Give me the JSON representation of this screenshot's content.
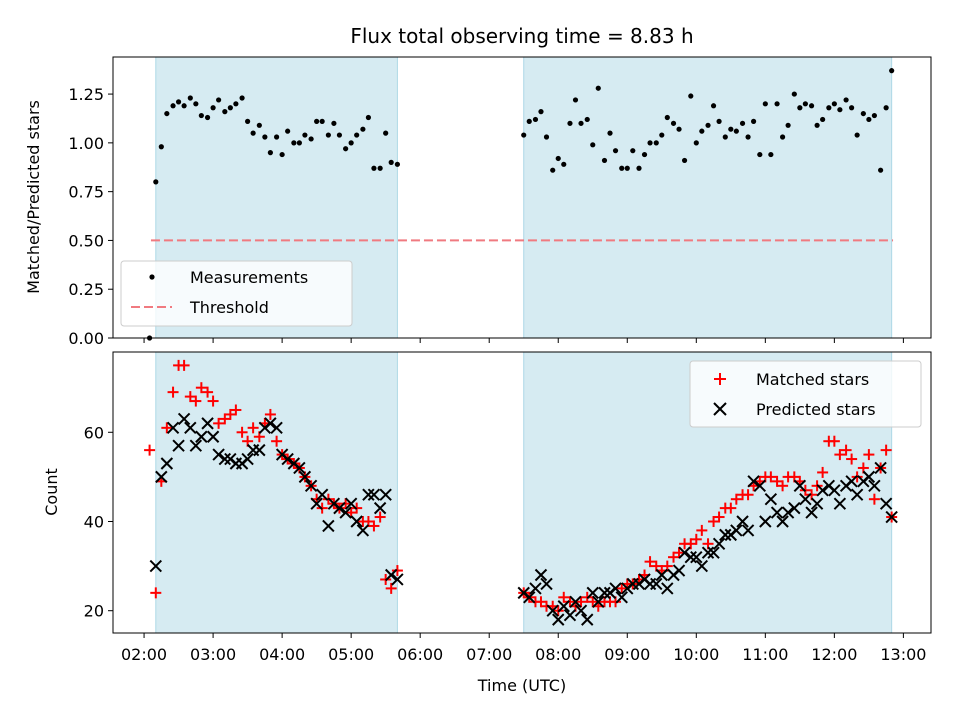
{
  "chart_data": [
    {
      "type": "scatter",
      "title": "Flux total observing time = 8.83 h",
      "xlabel": "",
      "ylabel": "Matched/Predicted stars",
      "ylim": [
        0,
        1.44
      ],
      "yticks": [
        0.0,
        0.25,
        0.5,
        0.75,
        1.0,
        1.25
      ],
      "yticklabels": [
        "0.00",
        "0.25",
        "0.50",
        "0.75",
        "1.00",
        "1.25"
      ],
      "threshold": 0.5,
      "threshold_span": [
        2.1,
        12.85
      ],
      "shaded_intervals": [
        [
          2.17,
          5.67
        ],
        [
          7.5,
          12.83
        ]
      ],
      "legend": {
        "position": "lower-left",
        "entries": [
          "Measurements",
          "Threshold"
        ]
      },
      "series": [
        {
          "name": "Measurements",
          "x": [
            2.08,
            2.17,
            2.25,
            2.33,
            2.42,
            2.5,
            2.58,
            2.67,
            2.75,
            2.83,
            2.92,
            3.0,
            3.08,
            3.17,
            3.25,
            3.33,
            3.42,
            3.5,
            3.58,
            3.67,
            3.75,
            3.83,
            3.92,
            4.0,
            4.08,
            4.17,
            4.25,
            4.33,
            4.42,
            4.5,
            4.58,
            4.67,
            4.75,
            4.83,
            4.92,
            5.0,
            5.08,
            5.17,
            5.25,
            5.33,
            5.42,
            5.5,
            5.58,
            5.67,
            7.5,
            7.58,
            7.67,
            7.75,
            7.83,
            7.92,
            8.0,
            8.08,
            8.17,
            8.25,
            8.33,
            8.42,
            8.5,
            8.58,
            8.67,
            8.75,
            8.83,
            8.92,
            9.0,
            9.08,
            9.17,
            9.25,
            9.33,
            9.42,
            9.5,
            9.58,
            9.67,
            9.75,
            9.83,
            9.92,
            10.0,
            10.08,
            10.17,
            10.25,
            10.33,
            10.42,
            10.5,
            10.58,
            10.67,
            10.75,
            10.83,
            10.92,
            11.0,
            11.08,
            11.17,
            11.25,
            11.33,
            11.42,
            11.5,
            11.58,
            11.67,
            11.75,
            11.83,
            11.92,
            12.0,
            12.08,
            12.17,
            12.25,
            12.33,
            12.42,
            12.5,
            12.58,
            12.67,
            12.75,
            12.83
          ],
          "y": [
            0.0,
            0.8,
            0.98,
            1.15,
            1.19,
            1.21,
            1.19,
            1.23,
            1.2,
            1.14,
            1.13,
            1.18,
            1.22,
            1.16,
            1.18,
            1.2,
            1.23,
            1.11,
            1.05,
            1.09,
            1.03,
            0.95,
            1.03,
            0.94,
            1.06,
            1.0,
            1.0,
            1.04,
            1.02,
            1.11,
            1.11,
            1.04,
            1.1,
            1.04,
            0.97,
            1.0,
            1.04,
            1.07,
            1.13,
            0.87,
            0.87,
            1.05,
            0.9,
            0.89,
            1.04,
            1.11,
            1.12,
            1.16,
            1.03,
            0.86,
            0.92,
            0.89,
            1.1,
            1.22,
            1.1,
            1.12,
            0.99,
            1.28,
            0.91,
            1.05,
            0.96,
            0.87,
            0.87,
            0.96,
            0.87,
            0.94,
            1.0,
            1.0,
            1.04,
            1.13,
            1.1,
            1.07,
            0.91,
            1.24,
            1.0,
            1.06,
            1.09,
            1.19,
            1.11,
            1.03,
            1.07,
            1.06,
            1.1,
            1.03,
            1.11,
            0.94,
            1.2,
            0.94,
            1.2,
            1.03,
            1.09,
            1.25,
            1.18,
            1.2,
            1.19,
            1.09,
            1.12,
            1.18,
            1.2,
            1.17,
            1.22,
            1.18,
            1.04,
            1.15,
            1.12,
            1.14,
            0.86,
            1.18,
            1.37
          ]
        }
      ]
    },
    {
      "type": "scatter",
      "title": "",
      "xlabel": "Time (UTC)",
      "ylabel": "Count",
      "ylim": [
        15,
        78
      ],
      "yticks": [
        20,
        40,
        60
      ],
      "yticklabels": [
        "20",
        "40",
        "60"
      ],
      "xlim": [
        1.55,
        13.4
      ],
      "xticks": [
        2,
        3,
        4,
        5,
        6,
        7,
        8,
        9,
        10,
        11,
        12,
        13
      ],
      "xticklabels": [
        "02:00",
        "03:00",
        "04:00",
        "05:00",
        "06:00",
        "07:00",
        "08:00",
        "09:00",
        "10:00",
        "11:00",
        "12:00",
        "13:00"
      ],
      "shaded_intervals": [
        [
          2.17,
          5.67
        ],
        [
          7.5,
          12.83
        ]
      ],
      "legend": {
        "position": "top-right",
        "entries": [
          "Matched stars",
          "Predicted stars"
        ]
      },
      "series": [
        {
          "name": "Matched stars",
          "marker": "plus",
          "color": "#ff0000",
          "x": [
            2.08,
            2.17,
            2.25,
            2.33,
            2.42,
            2.5,
            2.58,
            2.67,
            2.75,
            2.83,
            2.92,
            3.0,
            3.08,
            3.17,
            3.25,
            3.33,
            3.42,
            3.5,
            3.58,
            3.67,
            3.75,
            3.83,
            3.92,
            4.0,
            4.08,
            4.17,
            4.25,
            4.33,
            4.42,
            4.5,
            4.58,
            4.67,
            4.75,
            4.83,
            4.92,
            5.0,
            5.08,
            5.17,
            5.25,
            5.33,
            5.42,
            5.5,
            5.58,
            5.67,
            7.5,
            7.58,
            7.67,
            7.75,
            7.83,
            7.92,
            8.0,
            8.08,
            8.17,
            8.25,
            8.33,
            8.42,
            8.5,
            8.58,
            8.67,
            8.75,
            8.83,
            8.92,
            9.0,
            9.08,
            9.17,
            9.25,
            9.33,
            9.42,
            9.5,
            9.58,
            9.67,
            9.75,
            9.83,
            9.92,
            10.0,
            10.08,
            10.17,
            10.25,
            10.33,
            10.42,
            10.5,
            10.58,
            10.67,
            10.75,
            10.83,
            10.92,
            11.0,
            11.08,
            11.17,
            11.25,
            11.33,
            11.42,
            11.5,
            11.58,
            11.67,
            11.75,
            11.83,
            11.92,
            12.0,
            12.08,
            12.17,
            12.25,
            12.33,
            12.42,
            12.5,
            12.58,
            12.67,
            12.75,
            12.83
          ],
          "y": [
            56,
            24,
            49,
            61,
            69,
            75,
            75,
            68,
            67,
            70,
            69,
            67,
            62,
            63,
            64,
            65,
            60,
            58,
            61,
            59,
            62,
            64,
            58,
            55,
            54,
            53,
            52,
            50,
            48,
            45,
            43,
            45,
            44,
            43,
            44,
            42,
            43,
            40,
            40,
            39,
            41,
            27,
            25,
            29,
            24,
            23,
            22,
            22,
            21,
            21,
            20,
            23,
            22,
            21,
            22,
            23,
            22,
            21,
            22,
            22,
            22,
            25,
            26,
            26,
            27,
            28,
            31,
            30,
            29,
            30,
            32,
            33,
            35,
            35,
            36,
            38,
            35,
            40,
            41,
            43,
            43,
            45,
            46,
            46,
            48,
            49,
            50,
            50,
            49,
            48,
            50,
            50,
            49,
            47,
            46,
            48,
            51,
            58,
            58,
            55,
            56,
            54,
            50,
            52,
            55,
            45,
            52,
            56,
            41
          ],
          "y_note": "approximate reading"
        },
        {
          "name": "Predicted stars",
          "marker": "x",
          "color": "#000000",
          "x": [
            2.17,
            2.25,
            2.33,
            2.42,
            2.5,
            2.58,
            2.67,
            2.75,
            2.83,
            2.92,
            3.0,
            3.08,
            3.17,
            3.25,
            3.33,
            3.42,
            3.5,
            3.58,
            3.67,
            3.75,
            3.83,
            3.92,
            4.0,
            4.08,
            4.17,
            4.25,
            4.33,
            4.42,
            4.5,
            4.58,
            4.67,
            4.75,
            4.83,
            4.92,
            5.0,
            5.08,
            5.17,
            5.25,
            5.33,
            5.42,
            5.5,
            5.58,
            5.67,
            7.5,
            7.58,
            7.67,
            7.75,
            7.83,
            7.92,
            8.0,
            8.08,
            8.17,
            8.25,
            8.33,
            8.42,
            8.5,
            8.58,
            8.67,
            8.75,
            8.83,
            8.92,
            9.0,
            9.08,
            9.17,
            9.25,
            9.33,
            9.42,
            9.5,
            9.58,
            9.67,
            9.75,
            9.83,
            9.92,
            10.0,
            10.08,
            10.17,
            10.25,
            10.33,
            10.42,
            10.5,
            10.58,
            10.67,
            10.75,
            10.83,
            10.92,
            11.0,
            11.08,
            11.17,
            11.25,
            11.33,
            11.42,
            11.5,
            11.58,
            11.67,
            11.75,
            11.83,
            11.92,
            12.0,
            12.08,
            12.17,
            12.25,
            12.33,
            12.42,
            12.5,
            12.58,
            12.67,
            12.75,
            12.83
          ],
          "y": [
            30,
            50,
            53,
            61,
            57,
            63,
            61,
            57,
            59,
            62,
            59,
            55,
            54,
            54,
            53,
            53,
            54,
            56,
            56,
            61,
            62,
            61,
            55,
            54,
            53,
            52,
            50,
            48,
            44,
            46,
            39,
            44,
            43,
            42,
            44,
            40,
            38,
            46,
            46,
            43,
            46,
            28,
            27,
            24,
            23,
            25,
            28,
            26,
            20,
            18,
            21,
            19,
            22,
            20,
            18,
            24,
            22,
            24,
            24,
            25,
            23,
            25,
            26,
            26,
            27,
            26,
            26,
            28,
            25,
            28,
            29,
            33,
            32,
            32,
            30,
            33,
            33,
            35,
            37,
            37,
            38,
            40,
            38,
            49,
            48,
            40,
            45,
            42,
            40,
            42,
            43,
            48,
            45,
            42,
            44,
            47,
            48,
            47,
            44,
            48,
            49,
            46,
            49,
            50,
            48,
            52,
            44,
            41
          ],
          "y_note": "approximate reading"
        }
      ]
    }
  ]
}
